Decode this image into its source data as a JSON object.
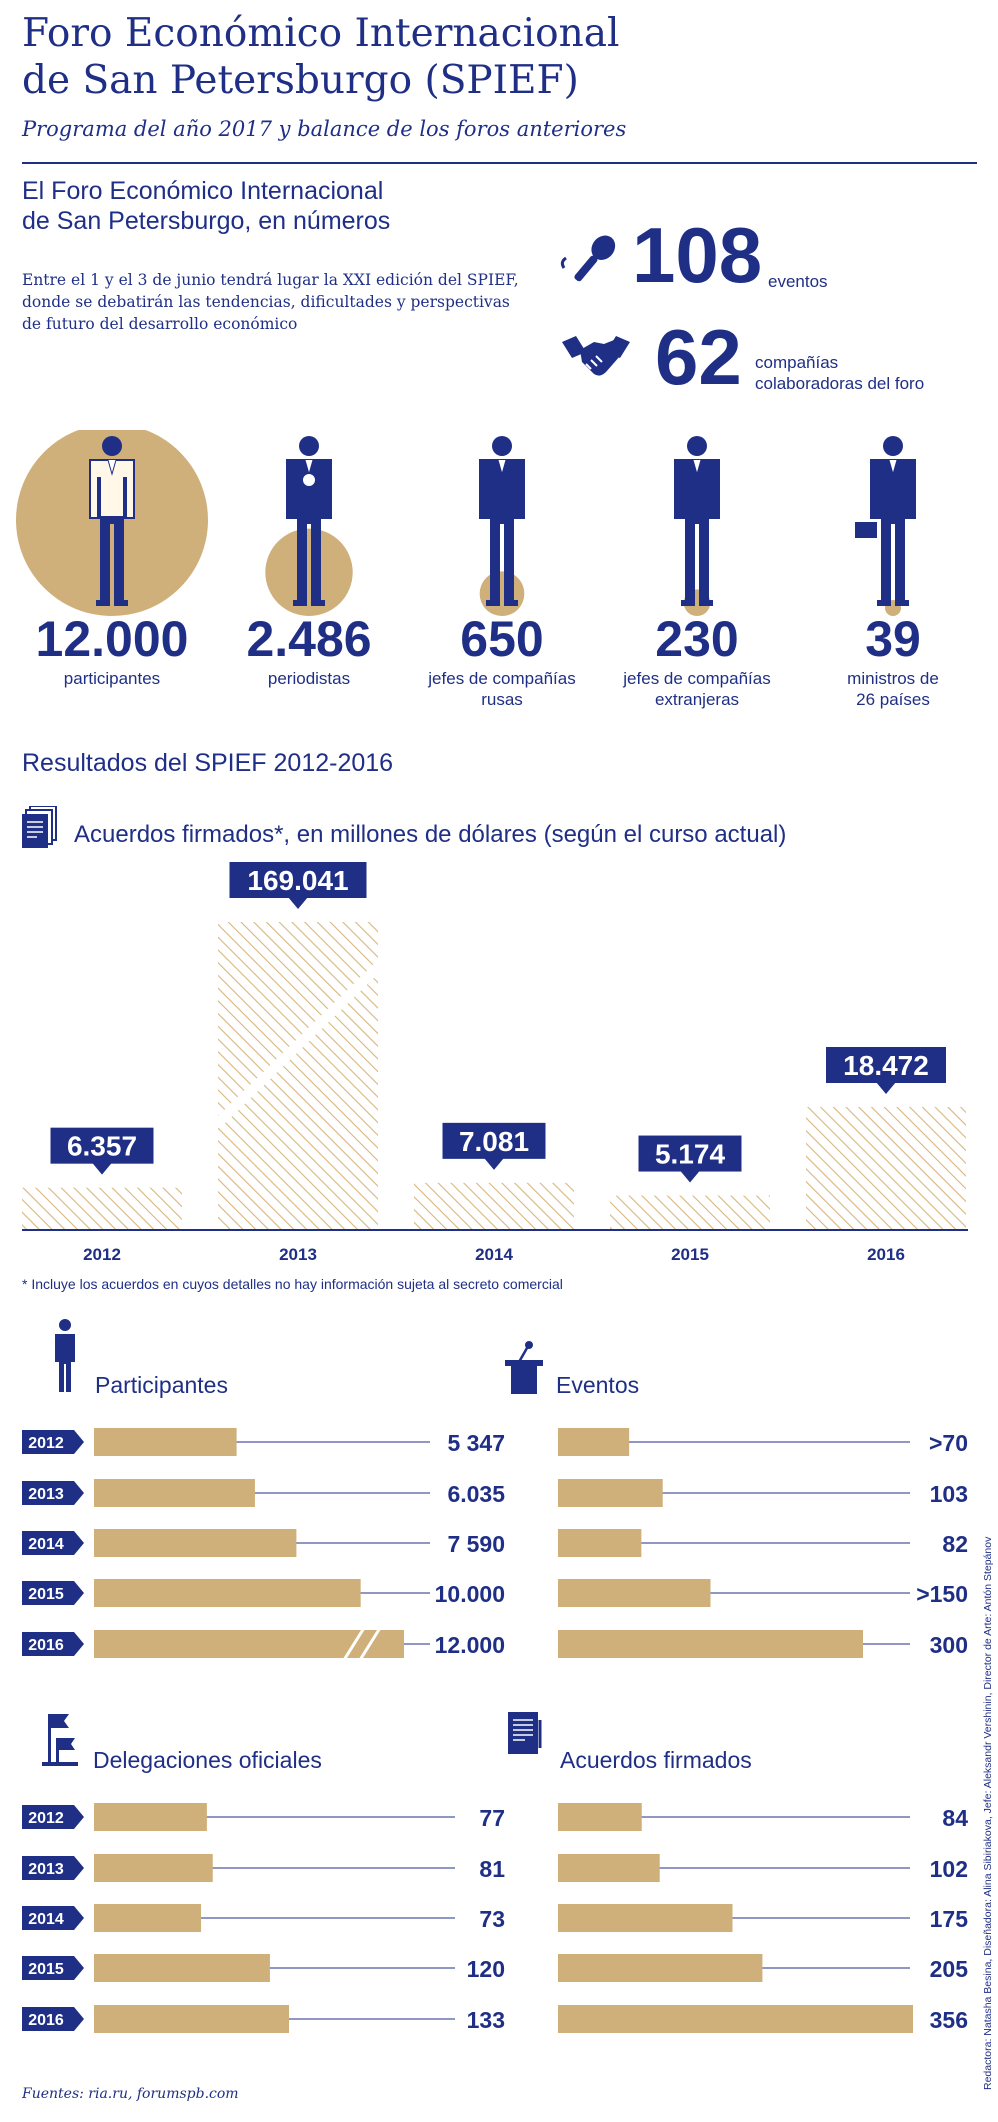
{
  "header": {
    "title_line1": "Foro Económico Internacional",
    "title_line2": "de San Petersburgo (SPIEF)",
    "subtitle": "Programa del año 2017 y balance de los foros anteriores"
  },
  "numbers_section": {
    "heading_line1": "El Foro Económico Internacional",
    "heading_line2": "de San Petersburgo, en números",
    "intro": "Entre el 1 y el 3 de junio tendrá lugar la XXI edición del SPIEF, donde se debatirán las tendencias, dificultades y perspectivas de futuro del desarrollo económico",
    "events_number": "108",
    "events_label": "eventos",
    "partners_number": "62",
    "partners_label_line1": "compañías",
    "partners_label_line2": "colaboradoras del foro",
    "stats": [
      {
        "number": "12.000",
        "label_line1": "participantes",
        "label_line2": "",
        "value": 12000
      },
      {
        "number": "2.486",
        "label_line1": "periodistas",
        "label_line2": "",
        "value": 2486
      },
      {
        "number": "650",
        "label_line1": "jefes de compañías",
        "label_line2": "rusas",
        "value": 650
      },
      {
        "number": "230",
        "label_line1": "jefes de compañías",
        "label_line2": "extranjeras",
        "value": 230
      },
      {
        "number": "39",
        "label_line1": "ministros de",
        "label_line2": "26 países",
        "value": 39
      }
    ]
  },
  "results": {
    "heading": "Resultados del SPIEF 2012-2016",
    "agreements_title": "Acuerdos firmados*, en millones de dólares (según el curso actual)",
    "footnote": "* Incluye los acuerdos en cuyos detalles no hay información sujeta al secreto comercial"
  },
  "chart_data": [
    {
      "type": "bar",
      "title": "Acuerdos firmados*, en millones de dólares (según el curso actual)",
      "categories": [
        "2012",
        "2013",
        "2014",
        "2015",
        "2016"
      ],
      "values": [
        6357,
        169041,
        7081,
        5174,
        18472
      ],
      "value_labels": [
        "6.357",
        "169.041",
        "7.081",
        "5.174",
        "18.472"
      ],
      "axis_break": "2013 bar is broken",
      "grid": false
    },
    {
      "type": "bar",
      "orientation": "horizontal",
      "title": "Participantes",
      "categories": [
        "2012",
        "2013",
        "2014",
        "2015",
        "2016"
      ],
      "values": [
        5347,
        6035,
        7590,
        10000,
        12000
      ],
      "value_labels": [
        "5 347",
        "6.035",
        "7 590",
        "10.000",
        "12.000"
      ],
      "axis_break": "2016 bar is broken"
    },
    {
      "type": "bar",
      "orientation": "horizontal",
      "title": "Eventos",
      "categories": [
        "2012",
        "2013",
        "2014",
        "2015",
        "2016"
      ],
      "values": [
        70,
        103,
        82,
        150,
        300
      ],
      "value_labels": [
        ">70",
        "103",
        "82",
        ">150",
        "300"
      ]
    },
    {
      "type": "bar",
      "orientation": "horizontal",
      "title": "Delegaciones oficiales",
      "categories": [
        "2012",
        "2013",
        "2014",
        "2015",
        "2016"
      ],
      "values": [
        77,
        81,
        73,
        120,
        133
      ],
      "value_labels": [
        "77",
        "81",
        "73",
        "120",
        "133"
      ]
    },
    {
      "type": "bar",
      "orientation": "horizontal",
      "title": "Acuerdos firmados",
      "categories": [
        "2012",
        "2013",
        "2014",
        "2015",
        "2016"
      ],
      "values": [
        84,
        102,
        175,
        205,
        356
      ],
      "value_labels": [
        "84",
        "102",
        "175",
        "205",
        "356"
      ]
    }
  ],
  "sources": "Fuentes: ria.ru, forumspb.com",
  "credits": "Redactora: Natasha Besina, Diseñadora: Alina Sibiriakova, Jefe: Aleksandr Vershinin, Director de Arte: Antón Stepánov",
  "colors": {
    "navy": "#1f2f86",
    "gold": "#cfb07a",
    "gold_light": "#e2c89a"
  },
  "icons": [
    "microphone-icon",
    "handshake-icon",
    "document-icon",
    "person-icon",
    "podium-icon",
    "flags-icon",
    "clipboard-icon"
  ]
}
